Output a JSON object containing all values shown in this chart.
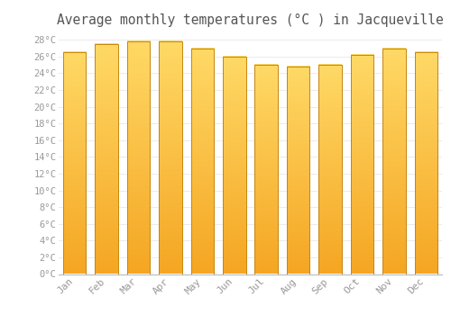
{
  "title": "Average monthly temperatures (°C ) in Jacqueville",
  "months": [
    "Jan",
    "Feb",
    "Mar",
    "Apr",
    "May",
    "Jun",
    "Jul",
    "Aug",
    "Sep",
    "Oct",
    "Nov",
    "Dec"
  ],
  "values": [
    26.5,
    27.5,
    27.8,
    27.8,
    27.0,
    26.0,
    25.0,
    24.8,
    25.0,
    26.2,
    27.0,
    26.5
  ],
  "bar_color_bottom": "#F5A623",
  "bar_color_top": "#FFD966",
  "bar_edge_color": "#C8860A",
  "ylim": [
    0,
    29
  ],
  "ytick_step": 2,
  "background_color": "#FFFFFF",
  "grid_color": "#E8E8E8",
  "text_color": "#999999",
  "title_color": "#555555",
  "title_fontsize": 10.5,
  "bar_width": 0.72
}
